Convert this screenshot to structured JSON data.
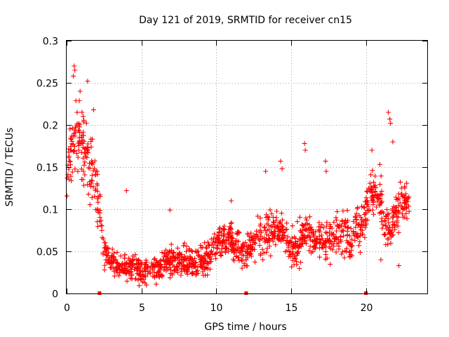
{
  "chart_data": {
    "type": "scatter",
    "title": "Day 121 of 2019, SRMTID for receiver cn15",
    "xlabel": "GPS time / hours",
    "ylabel": "SRMTID / TECUs",
    "xlim": [
      0,
      24.1
    ],
    "ylim": [
      0,
      0.3
    ],
    "grid": true,
    "marker": "+",
    "series_color": "#ff0000",
    "x_ticks": [
      0,
      5,
      10,
      15,
      20
    ],
    "x_tick_labels": [
      "0",
      "5",
      "10",
      "15",
      "20"
    ],
    "y_ticks": [
      0,
      0.05,
      0.1,
      0.15,
      0.2,
      0.25,
      0.3
    ],
    "y_tick_labels": [
      "0",
      "0.05",
      "0.1",
      "0.15",
      "0.2",
      "0.25",
      "0.3"
    ],
    "data_gap_markers_x": [
      2.2,
      12.0,
      20.0
    ],
    "trend": {
      "x": [
        0.0,
        0.3,
        0.6,
        1.0,
        1.5,
        1.8,
        2.1,
        2.3,
        2.5,
        3.0,
        3.5,
        4.0,
        4.5,
        5.0,
        5.5,
        6.0,
        6.5,
        7.0,
        7.5,
        8.0,
        8.5,
        9.0,
        9.5,
        10.0,
        10.5,
        11.0,
        11.5,
        12.0,
        12.5,
        13.0,
        13.5,
        14.0,
        14.5,
        15.0,
        15.5,
        16.0,
        16.5,
        17.0,
        17.5,
        18.0,
        18.5,
        19.0,
        19.5,
        20.0,
        20.3,
        20.6,
        21.0,
        21.3,
        21.6,
        22.0,
        22.5,
        22.9
      ],
      "y": [
        0.13,
        0.17,
        0.2,
        0.18,
        0.15,
        0.14,
        0.11,
        0.08,
        0.05,
        0.038,
        0.033,
        0.032,
        0.032,
        0.028,
        0.027,
        0.03,
        0.038,
        0.04,
        0.038,
        0.035,
        0.037,
        0.04,
        0.043,
        0.06,
        0.065,
        0.062,
        0.055,
        0.045,
        0.06,
        0.065,
        0.07,
        0.075,
        0.07,
        0.05,
        0.055,
        0.075,
        0.065,
        0.065,
        0.06,
        0.07,
        0.072,
        0.065,
        0.075,
        0.095,
        0.115,
        0.125,
        0.115,
        0.08,
        0.075,
        0.1,
        0.105,
        0.11
      ]
    },
    "spread": {
      "x": [
        0.0,
        1.5,
        2.3,
        3.0,
        10.0,
        15.0,
        20.0,
        21.3,
        22.9
      ],
      "y": [
        0.035,
        0.035,
        0.025,
        0.012,
        0.015,
        0.02,
        0.02,
        0.02,
        0.02
      ]
    },
    "outliers": [
      {
        "x": 0.5,
        "y": 0.27
      },
      {
        "x": 0.55,
        "y": 0.265
      },
      {
        "x": 0.45,
        "y": 0.258
      },
      {
        "x": 0.9,
        "y": 0.24
      },
      {
        "x": 1.4,
        "y": 0.252
      },
      {
        "x": 1.8,
        "y": 0.218
      },
      {
        "x": 4.0,
        "y": 0.122
      },
      {
        "x": 6.9,
        "y": 0.099
      },
      {
        "x": 11.0,
        "y": 0.11
      },
      {
        "x": 13.3,
        "y": 0.145
      },
      {
        "x": 14.3,
        "y": 0.157
      },
      {
        "x": 14.4,
        "y": 0.148
      },
      {
        "x": 15.9,
        "y": 0.178
      },
      {
        "x": 15.95,
        "y": 0.17
      },
      {
        "x": 17.3,
        "y": 0.157
      },
      {
        "x": 17.35,
        "y": 0.145
      },
      {
        "x": 20.4,
        "y": 0.17
      },
      {
        "x": 21.6,
        "y": 0.207
      },
      {
        "x": 21.65,
        "y": 0.202
      },
      {
        "x": 21.5,
        "y": 0.215
      },
      {
        "x": 21.8,
        "y": 0.18
      },
      {
        "x": 21.0,
        "y": 0.04
      },
      {
        "x": 22.2,
        "y": 0.033
      }
    ],
    "num_generated_points": 1500,
    "random_seed": 12115
  }
}
